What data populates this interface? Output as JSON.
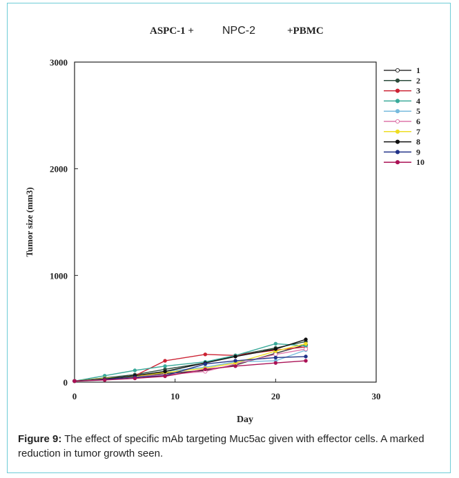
{
  "chart_data": {
    "type": "line",
    "title": {
      "part1": "ASPC-1 +",
      "part2": "NPC-2",
      "part3": "+PBMC"
    },
    "xlabel": "Day",
    "ylabel": "Tumor size (mm3)",
    "xlim": [
      0,
      30
    ],
    "ylim": [
      0,
      3000
    ],
    "xticks": [
      0,
      10,
      20,
      30
    ],
    "yticks": [
      0,
      1000,
      2000,
      3000
    ],
    "legend_position": "top-right",
    "grid": false,
    "series": [
      {
        "name": "1",
        "color": "#333333",
        "marker": "open-circle",
        "x": [
          0,
          3,
          6,
          9,
          13,
          16,
          20,
          23
        ],
        "y": [
          10,
          35,
          55,
          80,
          110,
          160,
          270,
          350
        ]
      },
      {
        "name": "2",
        "color": "#2a4a3a",
        "marker": "dot",
        "x": [
          0,
          3,
          6,
          9,
          13,
          16,
          20,
          23
        ],
        "y": [
          10,
          40,
          70,
          120,
          180,
          250,
          320,
          380
        ]
      },
      {
        "name": "3",
        "color": "#cc2233",
        "marker": "dot",
        "x": [
          0,
          3,
          6,
          9,
          13,
          16,
          20,
          23
        ],
        "y": [
          10,
          30,
          60,
          200,
          260,
          250,
          300,
          330
        ]
      },
      {
        "name": "4",
        "color": "#3aaa9a",
        "marker": "dot",
        "x": [
          0,
          3,
          6,
          9,
          13,
          16,
          20,
          23
        ],
        "y": [
          10,
          60,
          110,
          150,
          190,
          250,
          360,
          340
        ]
      },
      {
        "name": "5",
        "color": "#77bbdd",
        "marker": "dot",
        "x": [
          0,
          3,
          6,
          9,
          13,
          16,
          20,
          23
        ],
        "y": [
          10,
          35,
          60,
          100,
          140,
          190,
          200,
          300
        ]
      },
      {
        "name": "6",
        "color": "#dd77aa",
        "marker": "open-circle",
        "x": [
          0,
          3,
          6,
          9,
          13,
          16,
          20,
          23
        ],
        "y": [
          10,
          30,
          50,
          70,
          100,
          170,
          260,
          310
        ]
      },
      {
        "name": "7",
        "color": "#eedd22",
        "marker": "dot",
        "x": [
          0,
          3,
          6,
          9,
          13,
          16,
          20,
          23
        ],
        "y": [
          10,
          35,
          55,
          90,
          130,
          180,
          290,
          360
        ]
      },
      {
        "name": "8",
        "color": "#111111",
        "marker": "dot",
        "x": [
          0,
          3,
          6,
          9,
          13,
          16,
          20,
          23
        ],
        "y": [
          10,
          30,
          60,
          100,
          180,
          240,
          310,
          400
        ]
      },
      {
        "name": "9",
        "color": "#223388",
        "marker": "dot",
        "x": [
          0,
          3,
          6,
          9,
          13,
          16,
          20,
          23
        ],
        "y": [
          10,
          25,
          45,
          60,
          170,
          200,
          230,
          240
        ]
      },
      {
        "name": "10",
        "color": "#aa1155",
        "marker": "dot",
        "x": [
          0,
          3,
          6,
          9,
          13,
          16,
          20,
          23
        ],
        "y": [
          10,
          20,
          35,
          55,
          120,
          150,
          180,
          200
        ]
      }
    ]
  },
  "caption": {
    "label": "Figure 9:",
    "text": " The effect of specific mAb targeting Muc5ac given with effector cells. A marked reduction in tumor growth seen."
  }
}
